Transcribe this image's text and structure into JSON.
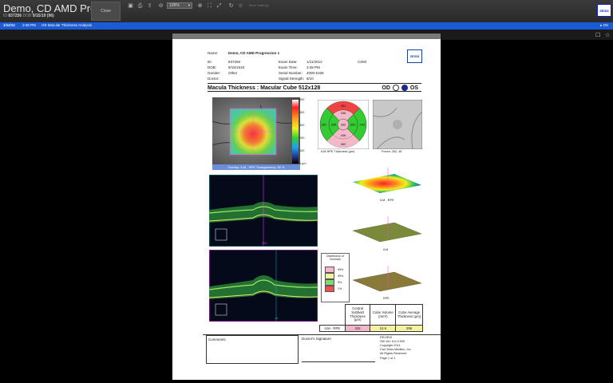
{
  "app": {
    "title": "Demo, CD AMD Prog...",
    "id_label": "ID",
    "id_value": "837256",
    "dob_label": "DOB",
    "dob_value": "9/15/19 (96)",
    "close_label": "Close",
    "zoom_value": "109%",
    "more_settings": "More Settings"
  },
  "bluebar": {
    "date": "1/11/12",
    "time": "3:48 PM",
    "scan": "OS Macular Thickness Analysis",
    "right": "OS"
  },
  "report": {
    "name_label": "Name:",
    "name_value": "Demo, CD AMD Progression 1",
    "id_label": "ID:",
    "id_value": "837256",
    "dob_label": "DOB:",
    "dob_value": "9/15/1919",
    "gender_label": "Gender:",
    "gender_value": "Other",
    "doctor_label": "Doctor:",
    "exam_date_label": "Exam Date:",
    "exam_date_value": "1/11/2012",
    "exam_time_label": "Exam Time:",
    "exam_time_value": "3:48 PM",
    "serial_label": "Serial Number:",
    "serial_value": "4000-5169",
    "signal_label": "Signal Strength:",
    "signal_value": "8/10",
    "czmi": "CZMI",
    "logo": "ZEISS",
    "section_title": "Macula Thickness : Macular Cube 512x128",
    "od": "OD",
    "os": "OS",
    "scale": [
      "500",
      "400",
      "300",
      "200",
      "100",
      "0 µm"
    ],
    "overlay_label": "Overlay: ILM - RPE   Transparency: 50 %",
    "etdrs": {
      "center": "332",
      "inner_sup": "336",
      "inner_nasal": "345",
      "inner_inf": "436",
      "inner_temp": "302",
      "outer_sup": "281",
      "outer_nasal": "281",
      "outer_temp": "242",
      "outer_inf": "462",
      "caption": "ILM-RPE Thickness (µm)"
    },
    "fovea_caption": "Fovea: 262, 48",
    "bscan_top_num": "262",
    "bscan_bottom_num": "48",
    "surface_labels": [
      "ILM - RPE",
      "ILM",
      "RPE"
    ],
    "distribution": {
      "title": "Distribution of Normals",
      "items": [
        {
          "label": "99%",
          "color": "#f4b8c8"
        },
        {
          "label": "95%",
          "color": "#f0f0a0"
        },
        {
          "label": "5%",
          "color": "#7fd86b"
        },
        {
          "label": "1%",
          "color": "#f05050"
        }
      ]
    },
    "table": {
      "headers": [
        "Central Subfield Thickness (µm)",
        "Cube Volume (mm³)",
        "Cube Average Thickness (µm)"
      ],
      "row_label": "ILM - RPE",
      "values": [
        "332",
        "10.6",
        "295"
      ]
    },
    "comments": "Comments",
    "doctor_signature": "Doctor's Signature",
    "review": "REVIEW",
    "sw_ver": "SW Ver: 6.0.0.599",
    "copyright": "Copyright 2011",
    "company": "Carl Zeiss Meditec, Inc",
    "rights": "All Rights Reserved",
    "page": "Page 1 of 1"
  }
}
